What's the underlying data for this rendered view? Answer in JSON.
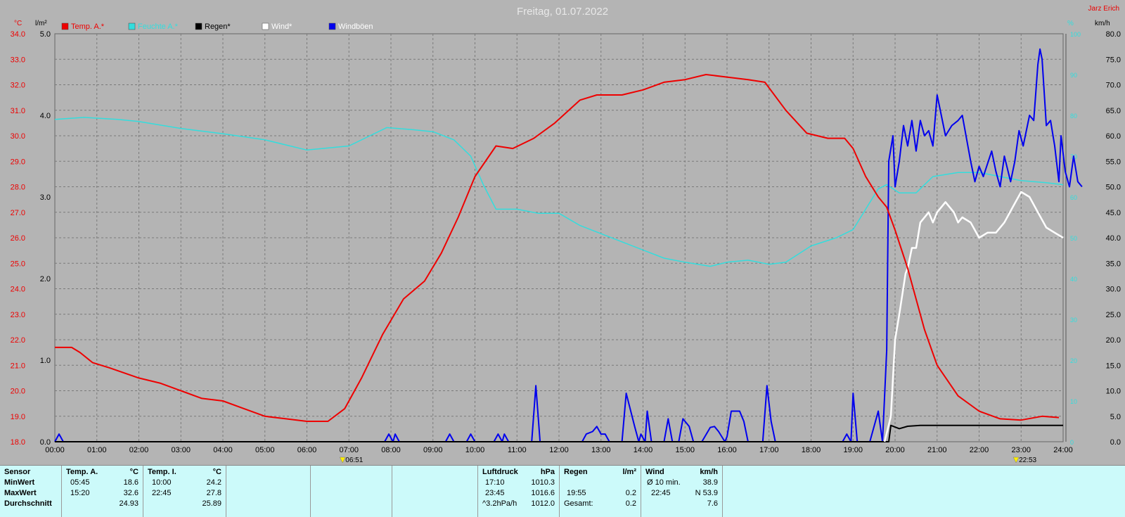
{
  "title": "Freitag, 01.07.2022",
  "author": "Jarz Erich",
  "colors": {
    "temp": "#ee0000",
    "humidity": "#33dddd",
    "rain": "#000000",
    "wind": "#ffffff",
    "gust": "#0000ee"
  },
  "chart_data": {
    "type": "line",
    "x_unit": "hours",
    "x_ticks": [
      "00:00",
      "01:00",
      "02:00",
      "03:00",
      "04:00",
      "05:00",
      "06:00",
      "07:00",
      "08:00",
      "09:00",
      "10:00",
      "11:00",
      "12:00",
      "13:00",
      "14:00",
      "15:00",
      "16:00",
      "17:00",
      "18:00",
      "19:00",
      "20:00",
      "21:00",
      "22:00",
      "23:00",
      "24:00"
    ],
    "xlim": [
      0,
      24
    ],
    "axes": {
      "temp": {
        "label": "°C",
        "ylim": [
          18,
          34
        ],
        "ticks": [
          "34.0",
          "33.0",
          "32.0",
          "31.0",
          "30.0",
          "29.0",
          "28.0",
          "27.0",
          "26.0",
          "25.0",
          "24.0",
          "23.0",
          "22.0",
          "21.0",
          "20.0",
          "19.0",
          "18.0"
        ]
      },
      "rain": {
        "label": "l/m²",
        "ylim": [
          0,
          5
        ],
        "ticks": [
          "5.0",
          "4.0",
          "3.0",
          "2.0",
          "1.0",
          "0.0"
        ]
      },
      "humidity": {
        "label": "%",
        "ylim": [
          0,
          100
        ],
        "ticks": [
          "100",
          "90",
          "80",
          "70",
          "60",
          "50",
          "40",
          "30",
          "20",
          "10",
          "0"
        ]
      },
      "wind": {
        "label": "km/h",
        "ylim": [
          0,
          80
        ],
        "ticks": [
          "80.0",
          "75.0",
          "70.0",
          "65.0",
          "60.0",
          "55.0",
          "50.0",
          "45.0",
          "40.0",
          "35.0",
          "30.0",
          "25.0",
          "20.0",
          "15.0",
          "10.0",
          "5.0",
          "0.0"
        ]
      }
    },
    "markers": [
      {
        "x": 6.85,
        "label": "06:51"
      },
      {
        "x": 22.88,
        "label": "22:53"
      }
    ],
    "legend": [
      "Temp. A.*",
      "Feuchte A.*",
      "Regen*",
      "Wind*",
      "Windböen"
    ],
    "series": [
      {
        "name": "Temp. A.*",
        "axis": "temp",
        "color": "#ee0000",
        "points": [
          [
            0,
            21.7
          ],
          [
            0.4,
            21.7
          ],
          [
            0.6,
            21.5
          ],
          [
            0.9,
            21.1
          ],
          [
            1.3,
            20.9
          ],
          [
            2,
            20.5
          ],
          [
            2.5,
            20.3
          ],
          [
            3,
            20.0
          ],
          [
            3.5,
            19.7
          ],
          [
            4,
            19.6
          ],
          [
            4.5,
            19.3
          ],
          [
            5,
            19.0
          ],
          [
            5.5,
            18.9
          ],
          [
            6,
            18.8
          ],
          [
            6.5,
            18.8
          ],
          [
            6.9,
            19.3
          ],
          [
            7.3,
            20.5
          ],
          [
            7.8,
            22.2
          ],
          [
            8.3,
            23.6
          ],
          [
            8.8,
            24.3
          ],
          [
            9.2,
            25.4
          ],
          [
            9.6,
            26.8
          ],
          [
            10,
            28.4
          ],
          [
            10.5,
            29.6
          ],
          [
            10.9,
            29.5
          ],
          [
            11.4,
            29.9
          ],
          [
            11.9,
            30.5
          ],
          [
            12.5,
            31.4
          ],
          [
            12.9,
            31.6
          ],
          [
            13.5,
            31.6
          ],
          [
            14,
            31.8
          ],
          [
            14.5,
            32.1
          ],
          [
            15,
            32.2
          ],
          [
            15.5,
            32.4
          ],
          [
            16,
            32.3
          ],
          [
            16.5,
            32.2
          ],
          [
            16.9,
            32.1
          ],
          [
            17.4,
            31.0
          ],
          [
            17.9,
            30.1
          ],
          [
            18.4,
            29.9
          ],
          [
            18.8,
            29.9
          ],
          [
            19.0,
            29.5
          ],
          [
            19.3,
            28.4
          ],
          [
            19.6,
            27.6
          ],
          [
            19.8,
            27.2
          ],
          [
            20,
            26.3
          ],
          [
            20.3,
            24.8
          ],
          [
            20.7,
            22.4
          ],
          [
            21,
            21.0
          ],
          [
            21.5,
            19.8
          ],
          [
            22,
            19.2
          ],
          [
            22.5,
            18.9
          ],
          [
            23,
            18.85
          ],
          [
            23.5,
            19.0
          ],
          [
            23.9,
            18.95
          ]
        ]
      },
      {
        "name": "Feuchte A.*",
        "axis": "humidity",
        "color": "#33dddd",
        "points": [
          [
            0,
            79
          ],
          [
            0.7,
            79.5
          ],
          [
            1.5,
            79
          ],
          [
            2,
            78.5
          ],
          [
            3,
            76.8
          ],
          [
            4,
            75.5
          ],
          [
            5,
            74
          ],
          [
            5.6,
            72.5
          ],
          [
            6,
            71.5
          ],
          [
            6.5,
            72
          ],
          [
            7,
            72.5
          ],
          [
            7.5,
            75
          ],
          [
            7.9,
            77
          ],
          [
            8.5,
            76.5
          ],
          [
            9,
            76
          ],
          [
            9.5,
            74
          ],
          [
            9.9,
            70
          ],
          [
            10.2,
            63
          ],
          [
            10.5,
            57
          ],
          [
            11,
            57
          ],
          [
            11.5,
            56
          ],
          [
            12,
            56
          ],
          [
            12.5,
            53
          ],
          [
            13,
            51
          ],
          [
            13.5,
            49
          ],
          [
            14,
            47
          ],
          [
            14.5,
            45
          ],
          [
            15,
            44
          ],
          [
            15.6,
            43
          ],
          [
            16,
            44
          ],
          [
            16.5,
            44.5
          ],
          [
            17,
            43.5
          ],
          [
            17.4,
            44
          ],
          [
            18,
            48
          ],
          [
            18.6,
            50
          ],
          [
            19,
            52
          ],
          [
            19.3,
            57
          ],
          [
            19.6,
            62
          ],
          [
            19.8,
            63
          ],
          [
            20.1,
            61
          ],
          [
            20.5,
            61
          ],
          [
            20.9,
            65
          ],
          [
            21.5,
            66
          ],
          [
            22,
            66
          ],
          [
            22.5,
            65
          ],
          [
            23,
            64
          ],
          [
            23.6,
            63.5
          ],
          [
            24,
            63
          ]
        ]
      },
      {
        "name": "Regen*",
        "axis": "rain",
        "color": "#000000",
        "points": [
          [
            0,
            0
          ],
          [
            19.85,
            0
          ],
          [
            19.9,
            0.2
          ],
          [
            20.1,
            0.16
          ],
          [
            20.3,
            0.19
          ],
          [
            20.6,
            0.2
          ],
          [
            24,
            0.2
          ]
        ]
      },
      {
        "name": "Wind*",
        "axis": "wind",
        "color": "#ffffff",
        "points": [
          [
            19.75,
            0
          ],
          [
            19.9,
            5
          ],
          [
            20,
            20
          ],
          [
            20.1,
            25
          ],
          [
            20.25,
            33
          ],
          [
            20.3,
            34
          ],
          [
            20.4,
            38
          ],
          [
            20.5,
            38
          ],
          [
            20.6,
            43
          ],
          [
            20.8,
            45
          ],
          [
            20.9,
            43
          ],
          [
            21,
            45
          ],
          [
            21.2,
            47
          ],
          [
            21.4,
            45
          ],
          [
            21.5,
            43
          ],
          [
            21.6,
            44
          ],
          [
            21.8,
            43
          ],
          [
            22,
            40
          ],
          [
            22.2,
            41
          ],
          [
            22.4,
            41
          ],
          [
            22.6,
            43
          ],
          [
            22.8,
            46
          ],
          [
            23,
            49
          ],
          [
            23.2,
            48
          ],
          [
            23.4,
            45
          ],
          [
            23.6,
            42
          ],
          [
            23.8,
            41
          ],
          [
            24,
            40
          ]
        ]
      },
      {
        "name": "Windböen",
        "axis": "wind",
        "color": "#0000ee",
        "points": [
          [
            0,
            0
          ],
          [
            0.1,
            1.5
          ],
          [
            0.2,
            0
          ],
          [
            7.85,
            0
          ],
          [
            7.95,
            1.5
          ],
          [
            8.05,
            0
          ],
          [
            8.1,
            1.5
          ],
          [
            8.2,
            0
          ],
          [
            9.3,
            0
          ],
          [
            9.4,
            1.5
          ],
          [
            9.5,
            0
          ],
          [
            9.8,
            0
          ],
          [
            9.9,
            1.5
          ],
          [
            10,
            0
          ],
          [
            10.45,
            0
          ],
          [
            10.55,
            1.5
          ],
          [
            10.65,
            0
          ],
          [
            10.7,
            1.5
          ],
          [
            10.8,
            0
          ],
          [
            11.35,
            0
          ],
          [
            11.45,
            11
          ],
          [
            11.55,
            0
          ],
          [
            12.55,
            0
          ],
          [
            12.65,
            1.5
          ],
          [
            12.8,
            2
          ],
          [
            12.9,
            3
          ],
          [
            13,
            1.5
          ],
          [
            13.1,
            1.5
          ],
          [
            13.2,
            0
          ],
          [
            13.5,
            0
          ],
          [
            13.6,
            9.5
          ],
          [
            13.8,
            3
          ],
          [
            13.9,
            0
          ],
          [
            13.95,
            1.5
          ],
          [
            14.05,
            0
          ],
          [
            14.1,
            6
          ],
          [
            14.2,
            0
          ],
          [
            14.5,
            0
          ],
          [
            14.6,
            4.5
          ],
          [
            14.7,
            0
          ],
          [
            14.85,
            0
          ],
          [
            14.95,
            4.5
          ],
          [
            15.1,
            3
          ],
          [
            15.2,
            0
          ],
          [
            15.4,
            0
          ],
          [
            15.6,
            2.8
          ],
          [
            15.7,
            3
          ],
          [
            15.8,
            2
          ],
          [
            15.95,
            0
          ],
          [
            16,
            1
          ],
          [
            16.1,
            6
          ],
          [
            16.3,
            6
          ],
          [
            16.4,
            4
          ],
          [
            16.5,
            0
          ],
          [
            16.85,
            0
          ],
          [
            16.95,
            11
          ],
          [
            17.05,
            4
          ],
          [
            17.15,
            0
          ],
          [
            18.75,
            0
          ],
          [
            18.85,
            1.5
          ],
          [
            18.95,
            0
          ],
          [
            19,
            9.5
          ],
          [
            19.1,
            0
          ],
          [
            19.4,
            0
          ],
          [
            19.6,
            6
          ],
          [
            19.7,
            0
          ],
          [
            19.8,
            18
          ],
          [
            19.85,
            55
          ],
          [
            19.95,
            60
          ],
          [
            20,
            50
          ],
          [
            20.1,
            55
          ],
          [
            20.2,
            62
          ],
          [
            20.3,
            58
          ],
          [
            20.4,
            63
          ],
          [
            20.5,
            57
          ],
          [
            20.6,
            63
          ],
          [
            20.7,
            60
          ],
          [
            20.8,
            61
          ],
          [
            20.9,
            58
          ],
          [
            21,
            68
          ],
          [
            21.2,
            60
          ],
          [
            21.35,
            62
          ],
          [
            21.5,
            63
          ],
          [
            21.6,
            64
          ],
          [
            21.8,
            55
          ],
          [
            21.9,
            51
          ],
          [
            22,
            54
          ],
          [
            22.1,
            52
          ],
          [
            22.3,
            57
          ],
          [
            22.4,
            53
          ],
          [
            22.5,
            50
          ],
          [
            22.6,
            56
          ],
          [
            22.75,
            51
          ],
          [
            22.85,
            55
          ],
          [
            22.95,
            61
          ],
          [
            23.05,
            58
          ],
          [
            23.2,
            64
          ],
          [
            23.3,
            63
          ],
          [
            23.4,
            74
          ],
          [
            23.45,
            77
          ],
          [
            23.5,
            75
          ],
          [
            23.6,
            62
          ],
          [
            23.7,
            63
          ],
          [
            23.8,
            58
          ],
          [
            23.9,
            51
          ],
          [
            23.95,
            60
          ],
          [
            24.05,
            53
          ],
          [
            24.15,
            50
          ],
          [
            24.25,
            56
          ],
          [
            24.35,
            51
          ],
          [
            24.45,
            50
          ]
        ]
      }
    ]
  },
  "stats": {
    "sensor": {
      "header": "Sensor",
      "rows": [
        "MinWert",
        "MaxWert",
        "Durchschnitt"
      ]
    },
    "temp_a": {
      "header": "Temp. A.",
      "unit": "°C",
      "rows": [
        [
          "05:45",
          "18.6"
        ],
        [
          "15:20",
          "32.6"
        ],
        [
          "",
          "24.93"
        ]
      ]
    },
    "temp_i": {
      "header": "Temp. I.",
      "unit": "°C",
      "rows": [
        [
          "10:00",
          "24.2"
        ],
        [
          "22:45",
          "27.8"
        ],
        [
          "",
          "25.89"
        ]
      ]
    },
    "pressure": {
      "header": "Luftdruck",
      "unit": "hPa",
      "rows": [
        [
          "17:10",
          "1010.3"
        ],
        [
          "23:45",
          "1016.6"
        ],
        [
          "^3.2hPa/h",
          "1012.0"
        ]
      ]
    },
    "rain": {
      "header": "Regen",
      "unit": "l/m²",
      "rows": [
        [
          "",
          ""
        ],
        [
          "19:55",
          "0.2"
        ],
        [
          "Gesamt:",
          "0.2"
        ]
      ]
    },
    "wind": {
      "header": "Wind",
      "unit": "km/h",
      "rows": [
        [
          "Ø 10 min.",
          "38.9"
        ],
        [
          "22:45",
          "N 53.9"
        ],
        [
          "",
          "7.6"
        ]
      ]
    }
  }
}
